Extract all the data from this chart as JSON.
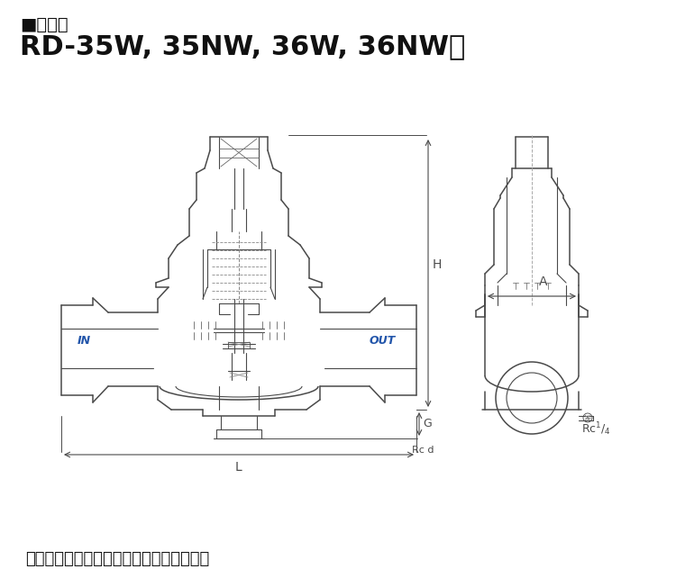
{
  "title_line1": "■構造図",
  "title_line2": "RD-35W, 35NW, 36W, 36NW型",
  "note": "注．呼び径により構造が多少異なります。",
  "bg_color": "#ffffff",
  "line_color": "#4a4a4a",
  "dim_color": "#4a4a4a",
  "blue_color": "#2255aa",
  "title1_fontsize": 14,
  "title2_fontsize": 22,
  "note_fontsize": 13
}
